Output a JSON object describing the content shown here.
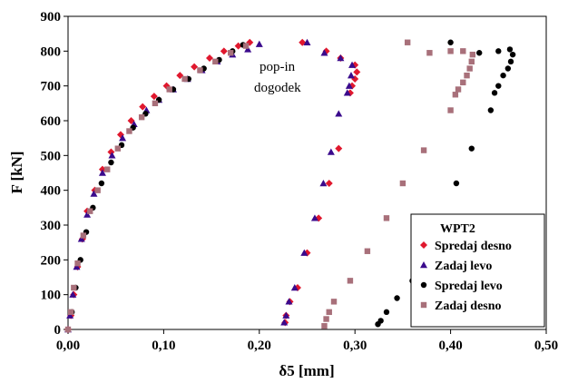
{
  "chart_data": {
    "type": "scatter",
    "xlabel": "δ5 [mm]",
    "ylabel": "F [kN]",
    "xlim": [
      0,
      0.5
    ],
    "ylim": [
      0,
      900
    ],
    "x_ticks": [
      "0,00",
      "0,10",
      "0,20",
      "0,30",
      "0,40",
      "0,50"
    ],
    "y_ticks": [
      "0",
      "100",
      "200",
      "300",
      "400",
      "500",
      "600",
      "700",
      "800",
      "900"
    ],
    "grid": false,
    "legend": {
      "title": "WPT2",
      "placement": "bottom-right"
    },
    "annotation": [
      "pop-in",
      "dogodek"
    ],
    "series": [
      {
        "name": "Spredaj desno",
        "color": "#e0182e",
        "marker": "diamond",
        "points": [
          [
            0.0,
            0
          ],
          [
            0.003,
            40
          ],
          [
            0.006,
            100
          ],
          [
            0.01,
            180
          ],
          [
            0.015,
            260
          ],
          [
            0.02,
            340
          ],
          [
            0.028,
            400
          ],
          [
            0.036,
            460
          ],
          [
            0.045,
            510
          ],
          [
            0.055,
            560
          ],
          [
            0.066,
            600
          ],
          [
            0.078,
            640
          ],
          [
            0.09,
            670
          ],
          [
            0.103,
            700
          ],
          [
            0.117,
            730
          ],
          [
            0.132,
            755
          ],
          [
            0.148,
            780
          ],
          [
            0.163,
            800
          ],
          [
            0.178,
            815
          ],
          [
            0.19,
            825
          ],
          [
            0.245,
            825
          ],
          [
            0.27,
            800
          ],
          [
            0.285,
            780
          ],
          [
            0.3,
            760
          ],
          [
            0.302,
            740
          ],
          [
            0.3,
            720
          ],
          [
            0.297,
            700
          ],
          [
            0.295,
            680
          ],
          [
            0.283,
            520
          ],
          [
            0.273,
            420
          ],
          [
            0.262,
            320
          ],
          [
            0.25,
            220
          ],
          [
            0.24,
            120
          ],
          [
            0.232,
            80
          ],
          [
            0.228,
            40
          ],
          [
            0.227,
            20
          ]
        ]
      },
      {
        "name": "Zadaj levo",
        "color": "#3a0a8c",
        "marker": "triangle",
        "points": [
          [
            0.0,
            0
          ],
          [
            0.002,
            40
          ],
          [
            0.005,
            100
          ],
          [
            0.009,
            180
          ],
          [
            0.014,
            260
          ],
          [
            0.02,
            330
          ],
          [
            0.027,
            390
          ],
          [
            0.036,
            450
          ],
          [
            0.046,
            500
          ],
          [
            0.057,
            550
          ],
          [
            0.069,
            590
          ],
          [
            0.082,
            630
          ],
          [
            0.095,
            660
          ],
          [
            0.11,
            690
          ],
          [
            0.125,
            720
          ],
          [
            0.14,
            745
          ],
          [
            0.156,
            770
          ],
          [
            0.172,
            790
          ],
          [
            0.188,
            805
          ],
          [
            0.2,
            820
          ],
          [
            0.25,
            825
          ],
          [
            0.268,
            795
          ],
          [
            0.285,
            780
          ],
          [
            0.297,
            760
          ],
          [
            0.296,
            730
          ],
          [
            0.294,
            700
          ],
          [
            0.292,
            680
          ],
          [
            0.283,
            620
          ],
          [
            0.275,
            510
          ],
          [
            0.267,
            420
          ],
          [
            0.258,
            320
          ],
          [
            0.247,
            220
          ],
          [
            0.237,
            120
          ],
          [
            0.231,
            80
          ],
          [
            0.228,
            40
          ],
          [
            0.226,
            20
          ]
        ]
      },
      {
        "name": "Spredaj levo",
        "color": "#000000",
        "marker": "circle",
        "points": [
          [
            0.0,
            0
          ],
          [
            0.004,
            50
          ],
          [
            0.008,
            120
          ],
          [
            0.013,
            200
          ],
          [
            0.019,
            280
          ],
          [
            0.026,
            350
          ],
          [
            0.035,
            420
          ],
          [
            0.045,
            480
          ],
          [
            0.056,
            530
          ],
          [
            0.068,
            580
          ],
          [
            0.081,
            620
          ],
          [
            0.095,
            660
          ],
          [
            0.11,
            690
          ],
          [
            0.126,
            720
          ],
          [
            0.142,
            750
          ],
          [
            0.158,
            775
          ],
          [
            0.172,
            800
          ],
          [
            0.183,
            818
          ],
          [
            0.4,
            825
          ],
          [
            0.43,
            795
          ],
          [
            0.45,
            800
          ],
          [
            0.462,
            805
          ],
          [
            0.465,
            790
          ],
          [
            0.463,
            770
          ],
          [
            0.46,
            750
          ],
          [
            0.455,
            730
          ],
          [
            0.45,
            700
          ],
          [
            0.446,
            680
          ],
          [
            0.442,
            630
          ],
          [
            0.422,
            520
          ],
          [
            0.406,
            420
          ],
          [
            0.385,
            300
          ],
          [
            0.36,
            140
          ],
          [
            0.344,
            90
          ],
          [
            0.333,
            50
          ],
          [
            0.327,
            25
          ],
          [
            0.324,
            15
          ]
        ]
      },
      {
        "name": "Zadaj desno",
        "color": "#a8707a",
        "marker": "square",
        "points": [
          [
            0.0,
            0
          ],
          [
            0.003,
            50
          ],
          [
            0.006,
            120
          ],
          [
            0.01,
            190
          ],
          [
            0.016,
            270
          ],
          [
            0.023,
            340
          ],
          [
            0.031,
            400
          ],
          [
            0.041,
            460
          ],
          [
            0.052,
            520
          ],
          [
            0.064,
            570
          ],
          [
            0.077,
            610
          ],
          [
            0.091,
            650
          ],
          [
            0.106,
            690
          ],
          [
            0.122,
            720
          ],
          [
            0.138,
            745
          ],
          [
            0.154,
            770
          ],
          [
            0.17,
            795
          ],
          [
            0.186,
            815
          ],
          [
            0.355,
            825
          ],
          [
            0.378,
            795
          ],
          [
            0.4,
            800
          ],
          [
            0.413,
            800
          ],
          [
            0.423,
            790
          ],
          [
            0.422,
            770
          ],
          [
            0.42,
            750
          ],
          [
            0.417,
            730
          ],
          [
            0.413,
            710
          ],
          [
            0.408,
            690
          ],
          [
            0.405,
            675
          ],
          [
            0.4,
            630
          ],
          [
            0.372,
            515
          ],
          [
            0.35,
            420
          ],
          [
            0.333,
            320
          ],
          [
            0.313,
            225
          ],
          [
            0.295,
            140
          ],
          [
            0.278,
            80
          ],
          [
            0.273,
            50
          ],
          [
            0.27,
            30
          ],
          [
            0.268,
            10
          ]
        ]
      }
    ]
  }
}
